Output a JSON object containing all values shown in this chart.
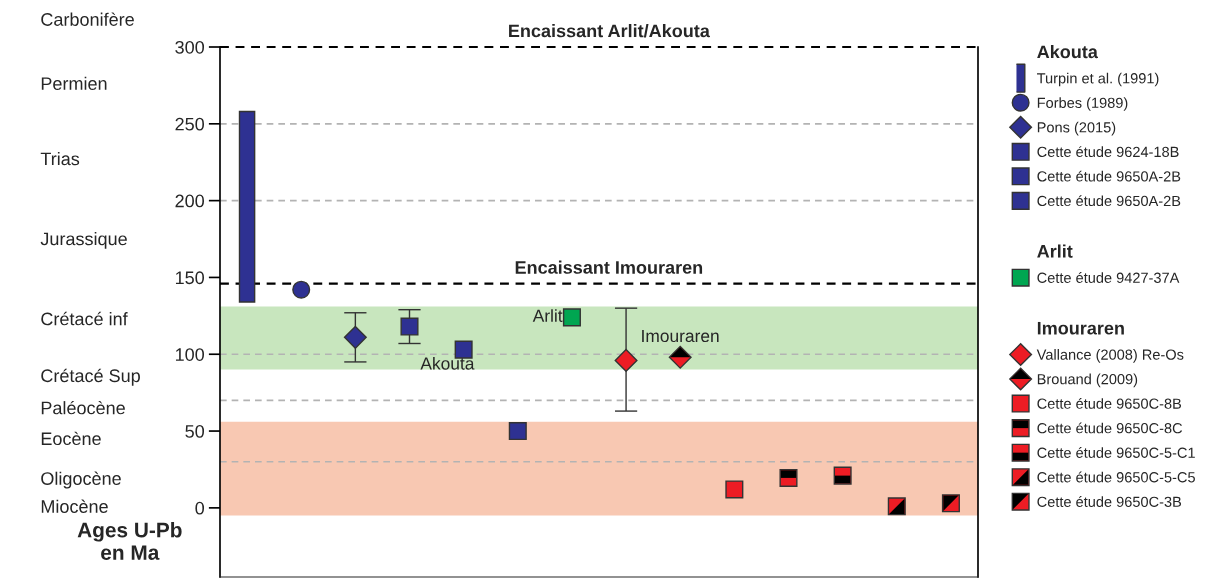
{
  "chart_data": {
    "type": "scatter",
    "ylabel": "Ages U-Pb\nen Ma",
    "categories": [
      null,
      null,
      null,
      null,
      null,
      null,
      null,
      null,
      null,
      null,
      null,
      null,
      null,
      null
    ],
    "ylim": [
      -45,
      300
    ],
    "yticks": [
      0,
      50,
      100,
      150,
      200,
      250,
      300
    ],
    "tick_labels": "y",
    "grid": false,
    "legend": "right",
    "series": [
      {
        "name": "Turpin et al. (1991)",
        "type": "bar",
        "color": "#2e3192",
        "base": [
          134,
          null,
          null,
          null,
          null,
          null,
          null,
          null,
          null,
          null,
          null,
          null,
          null,
          null
        ],
        "values": [
          124,
          null,
          null,
          null,
          null,
          null,
          null,
          null,
          null,
          null,
          null,
          null,
          null,
          null
        ]
      },
      {
        "name": "Forbes (1989)",
        "marker": "circle",
        "color": "#2e3192",
        "values": [
          null,
          142,
          null,
          null,
          null,
          null,
          null,
          null,
          null,
          null,
          null,
          null,
          null,
          null
        ]
      },
      {
        "name": "Pons (2015)",
        "marker": "diamond",
        "color": "#2e3192",
        "values": [
          null,
          null,
          111,
          null,
          null,
          null,
          null,
          null,
          null,
          null,
          null,
          null,
          null,
          null
        ],
        "errors": [
          null,
          null,
          [
            95,
            127
          ],
          null,
          null,
          null,
          null,
          null,
          null,
          null,
          null,
          null,
          null,
          null
        ]
      },
      {
        "name": "Cette étude 9624-18B",
        "marker": "square",
        "color": "#2e3192",
        "values": [
          null,
          null,
          null,
          118,
          null,
          null,
          null,
          null,
          null,
          null,
          null,
          null,
          null,
          null
        ],
        "errors": [
          null,
          null,
          null,
          [
            107,
            129
          ],
          null,
          null,
          null,
          null,
          null,
          null,
          null,
          null,
          null,
          null
        ]
      },
      {
        "name": "Cette étude 9650A-2B",
        "marker": "square",
        "color": "#2e3192",
        "values": [
          null,
          null,
          null,
          null,
          103,
          null,
          null,
          null,
          null,
          null,
          null,
          null,
          null,
          null
        ]
      },
      {
        "name": "Cette étude 9650A-2B",
        "marker": "square",
        "color": "#2e3192",
        "values": [
          null,
          null,
          null,
          null,
          null,
          50,
          null,
          null,
          null,
          null,
          null,
          null,
          null,
          null
        ]
      },
      {
        "name": "Cette étude 9427-37A",
        "marker": "square",
        "color": "#00a651",
        "values": [
          null,
          null,
          null,
          null,
          null,
          null,
          124,
          null,
          null,
          null,
          null,
          null,
          null,
          null
        ]
      },
      {
        "name": "Vallance (2008) Re-Os",
        "marker": "diamond",
        "color": "#ed1c24",
        "values": [
          null,
          null,
          null,
          null,
          null,
          null,
          null,
          96,
          null,
          null,
          null,
          null,
          null,
          null
        ],
        "errors": [
          null,
          null,
          null,
          null,
          null,
          null,
          null,
          [
            63,
            130
          ],
          null,
          null,
          null,
          null,
          null,
          null
        ]
      },
      {
        "name": "Brouand (2009)",
        "marker": "diamond",
        "color": "#ed1c24",
        "values": [
          null,
          null,
          null,
          null,
          null,
          null,
          null,
          null,
          98,
          null,
          null,
          null,
          null,
          null
        ]
      },
      {
        "name": "Cette étude 9650C-8B",
        "marker": "square",
        "color": "#ed1c24",
        "values": [
          null,
          null,
          null,
          null,
          null,
          null,
          null,
          null,
          null,
          12,
          null,
          null,
          null,
          null
        ]
      },
      {
        "name": "Cette étude 9650C-8C",
        "marker": "square",
        "color": "#ed1c24",
        "values": [
          null,
          null,
          null,
          null,
          null,
          null,
          null,
          null,
          null,
          null,
          19.5,
          null,
          null,
          null
        ]
      },
      {
        "name": "Cette étude 9650C-5-C1",
        "marker": "square",
        "color": "#ed1c24",
        "values": [
          null,
          null,
          null,
          null,
          null,
          null,
          null,
          null,
          null,
          null,
          null,
          21,
          null,
          null
        ]
      },
      {
        "name": "Cette étude 9650C-5-C5",
        "marker": "square",
        "color": "#ed1c24",
        "values": [
          null,
          null,
          null,
          null,
          null,
          null,
          null,
          null,
          null,
          null,
          null,
          null,
          1,
          null
        ]
      },
      {
        "name": "Cette étude 9650C-3B",
        "marker": "square",
        "color": "#ed1c24",
        "values": [
          null,
          null,
          null,
          null,
          null,
          null,
          null,
          null,
          null,
          null,
          null,
          null,
          null,
          3
        ]
      }
    ],
    "ref_lines": [
      {
        "axis": "y",
        "value": 300,
        "label": "Encaissant Arlit/Akouta",
        "color": "#000000",
        "line_style": "dashed"
      },
      {
        "axis": "y",
        "value": 146,
        "label": "Encaissant Imouraren",
        "color": "#000000",
        "line_style": "dashed"
      },
      {
        "axis": "y",
        "value": 250,
        "color": "#b3b3b3",
        "line_style": "dashed"
      },
      {
        "axis": "y",
        "value": 200,
        "color": "#b3b3b3",
        "line_style": "dashed"
      },
      {
        "axis": "y",
        "value": 100,
        "color": "#b3b3b3",
        "line_style": "dashed"
      },
      {
        "axis": "y",
        "value": 70,
        "color": "#b3b3b3",
        "line_style": "dashed"
      },
      {
        "axis": "y",
        "value": 30,
        "color": "#b3b3b3",
        "line_style": "dashed"
      }
    ],
    "bands": [
      {
        "axis": "y",
        "from": 90,
        "to": 131,
        "color": "#c8e6be"
      },
      {
        "axis": "y",
        "from": -5,
        "to": 56,
        "color": "#f8c8b2"
      }
    ],
    "annotations": [
      "Carbonifère",
      "Permien",
      "Trias",
      "Jurassique",
      "Crétacé inf",
      "Crétacé Sup",
      "Paléocène",
      "Eocène",
      "Oligocène",
      "Miocène",
      "Arlit",
      "Akouta",
      "Imouraren",
      "Akouta",
      "Arlit",
      "Imouraren"
    ]
  }
}
